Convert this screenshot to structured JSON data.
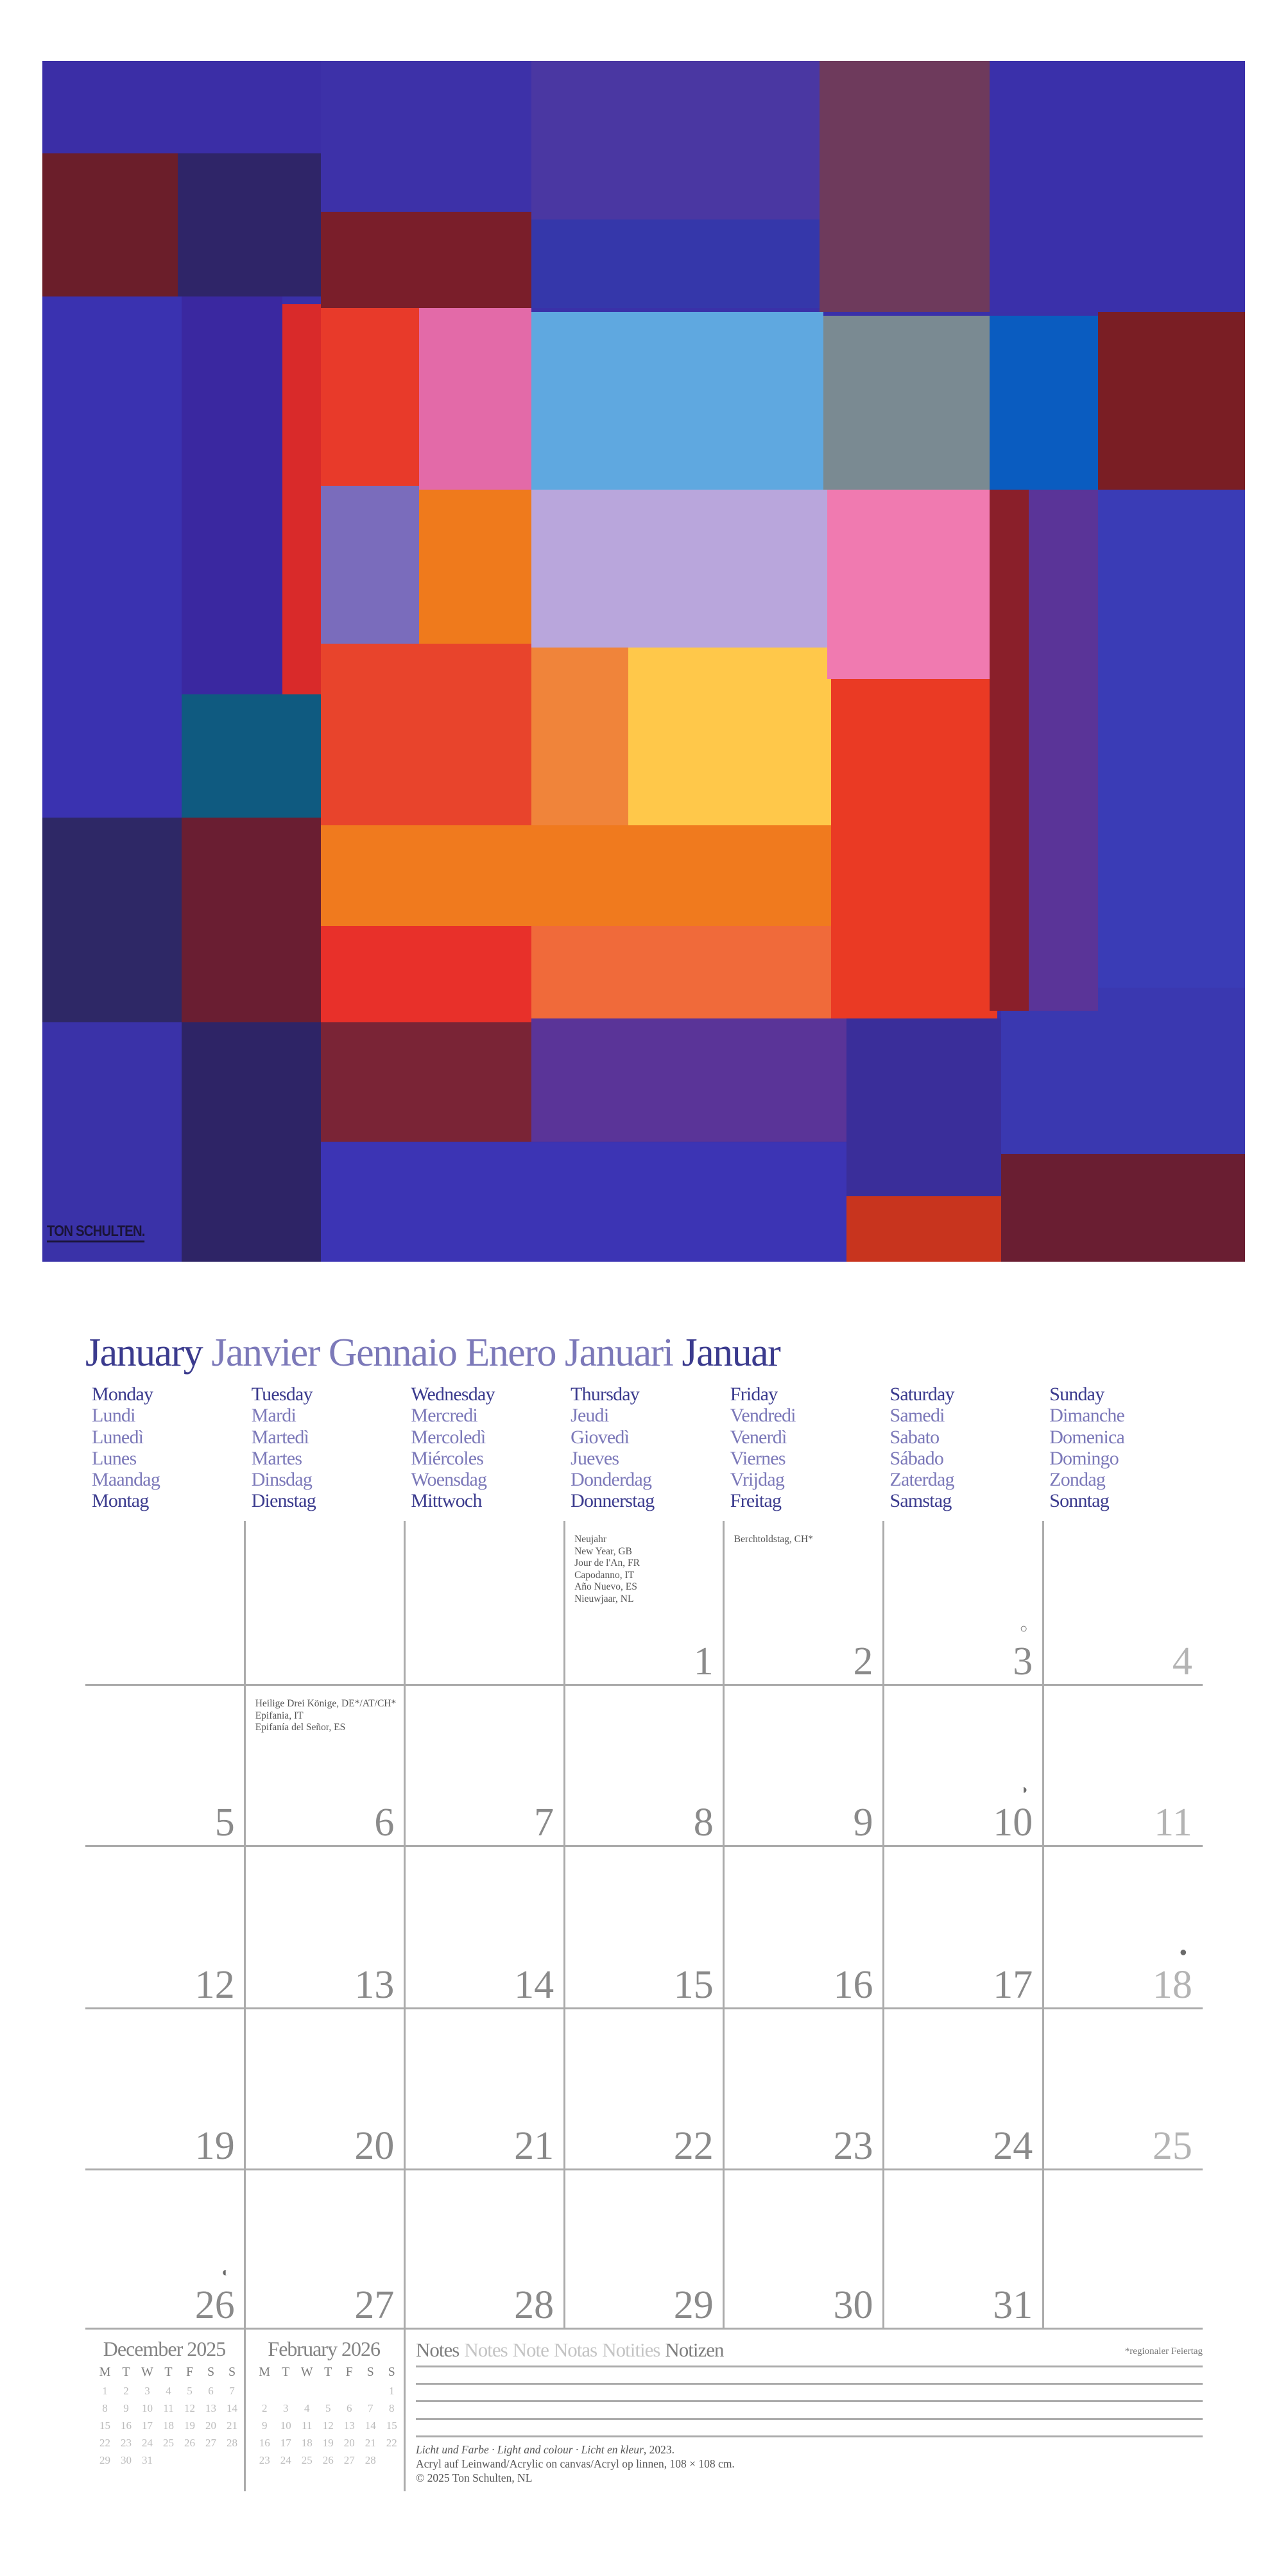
{
  "painting": {
    "signature": "TON SCHULTEN."
  },
  "month_title": [
    {
      "text": "January",
      "tone": "dark"
    },
    {
      "text": "Janvier",
      "tone": "light"
    },
    {
      "text": "Gennaio",
      "tone": "light"
    },
    {
      "text": "Enero",
      "tone": "light"
    },
    {
      "text": "Januari",
      "tone": "light"
    },
    {
      "text": "Januar",
      "tone": "dark"
    }
  ],
  "weekdays": [
    [
      "Monday",
      "Lundi",
      "Lunedì",
      "Lunes",
      "Maandag",
      "Montag"
    ],
    [
      "Tuesday",
      "Mardi",
      "Martedì",
      "Martes",
      "Dinsdag",
      "Dienstag"
    ],
    [
      "Wednesday",
      "Mercredi",
      "Mercoledì",
      "Miércoles",
      "Woensdag",
      "Mittwoch"
    ],
    [
      "Thursday",
      "Jeudi",
      "Giovedì",
      "Jueves",
      "Donderdag",
      "Donnerstag"
    ],
    [
      "Friday",
      "Vendredi",
      "Venerdì",
      "Viernes",
      "Vrijdag",
      "Freitag"
    ],
    [
      "Saturday",
      "Samedi",
      "Sabato",
      "Sábado",
      "Zaterdag",
      "Samstag"
    ],
    [
      "Sunday",
      "Dimanche",
      "Domenica",
      "Domingo",
      "Zondag",
      "Sonntag"
    ]
  ],
  "weeks": [
    [
      {},
      {},
      {},
      {
        "day": "1",
        "holidays": [
          "Neujahr",
          "New Year, GB",
          "Jour de l'An, FR",
          "Capodanno, IT",
          "Año Nuevo, ES",
          "Nieuwjaar, NL"
        ]
      },
      {
        "day": "2",
        "holidays": [
          "Berchtoldstag, CH*"
        ]
      },
      {
        "day": "3",
        "moon": "full-moon"
      },
      {
        "day": "4"
      }
    ],
    [
      {
        "day": "5"
      },
      {
        "day": "6",
        "holidays": [
          "Heilige Drei Könige, DE*/AT/CH*",
          "Epifania, IT",
          "Epifanía del Señor, ES"
        ]
      },
      {
        "day": "7"
      },
      {
        "day": "8"
      },
      {
        "day": "9"
      },
      {
        "day": "10",
        "moon": "first-quarter"
      },
      {
        "day": "11"
      }
    ],
    [
      {
        "day": "12"
      },
      {
        "day": "13"
      },
      {
        "day": "14"
      },
      {
        "day": "15"
      },
      {
        "day": "16"
      },
      {
        "day": "17"
      },
      {
        "day": "18",
        "moon": "new-moon"
      }
    ],
    [
      {
        "day": "19"
      },
      {
        "day": "20"
      },
      {
        "day": "21"
      },
      {
        "day": "22"
      },
      {
        "day": "23"
      },
      {
        "day": "24"
      },
      {
        "day": "25"
      }
    ],
    [
      {
        "day": "26",
        "moon": "last-quarter"
      },
      {
        "day": "27"
      },
      {
        "day": "28"
      },
      {
        "day": "29"
      },
      {
        "day": "30"
      },
      {
        "day": "31"
      },
      {}
    ]
  ],
  "mini_calendars": [
    {
      "title": "December 2025",
      "headers": [
        "M",
        "T",
        "W",
        "T",
        "F",
        "S",
        "S"
      ],
      "rows": [
        [
          "1",
          "2",
          "3",
          "4",
          "5",
          "6",
          "7"
        ],
        [
          "8",
          "9",
          "10",
          "11",
          "12",
          "13",
          "14"
        ],
        [
          "15",
          "16",
          "17",
          "18",
          "19",
          "20",
          "21"
        ],
        [
          "22",
          "23",
          "24",
          "25",
          "26",
          "27",
          "28"
        ],
        [
          "29",
          "30",
          "31",
          "",
          "",
          "",
          ""
        ]
      ]
    },
    {
      "title": "February 2026",
      "headers": [
        "M",
        "T",
        "W",
        "T",
        "F",
        "S",
        "S"
      ],
      "rows": [
        [
          "",
          "",
          "",
          "",
          "",
          "",
          "1"
        ],
        [
          "2",
          "3",
          "4",
          "5",
          "6",
          "7",
          "8"
        ],
        [
          "9",
          "10",
          "11",
          "12",
          "13",
          "14",
          "15"
        ],
        [
          "16",
          "17",
          "18",
          "19",
          "20",
          "21",
          "22"
        ],
        [
          "23",
          "24",
          "25",
          "26",
          "27",
          "28",
          ""
        ]
      ]
    }
  ],
  "notes": {
    "title": [
      {
        "text": "Notes",
        "tone": "dark"
      },
      {
        "text": "Notes",
        "tone": "light"
      },
      {
        "text": "Note",
        "tone": "light"
      },
      {
        "text": "Notas",
        "tone": "light"
      },
      {
        "text": "Notities",
        "tone": "light"
      },
      {
        "text": "Notizen",
        "tone": "dark"
      }
    ],
    "regional_note": "*regionaler Feiertag"
  },
  "caption": {
    "title_italic": "Licht und Farbe · Light and colour · Licht en kleur",
    "year": ", 2023.",
    "medium": "Acryl auf Leinwand/Acrylic on canvas/Acryl op linnen, 108 × 108 cm.",
    "copyright": "© 2025 Ton Schulten, NL"
  }
}
